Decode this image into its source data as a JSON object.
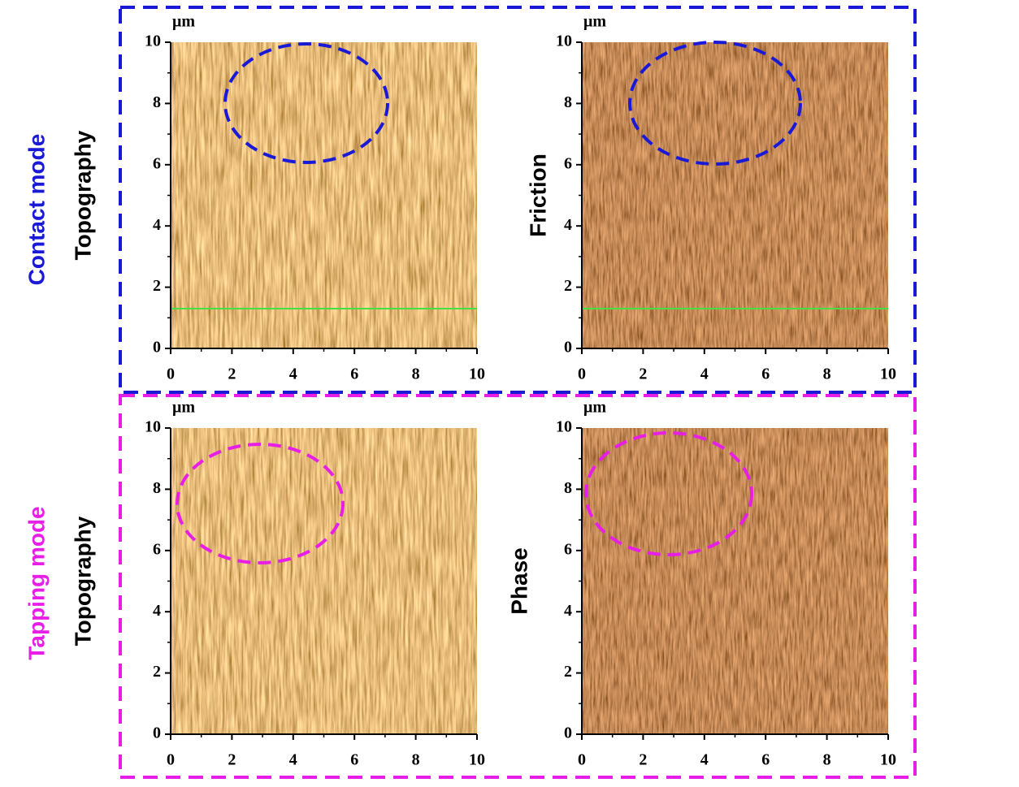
{
  "groups": [
    {
      "label": "Contact mode",
      "color": "#1a1ad6"
    },
    {
      "label": "Tapping mode",
      "color": "#e61ee6"
    }
  ],
  "panels": [
    {
      "label": "Topography",
      "unit": "μm",
      "xlim": [
        0,
        10
      ],
      "ylim": [
        0,
        10
      ],
      "xticks": [
        0,
        2,
        4,
        6,
        8,
        10
      ],
      "yticks": [
        0,
        2,
        4,
        6,
        8,
        10
      ]
    },
    {
      "label": "Friction",
      "unit": "μm",
      "xlim": [
        0,
        10
      ],
      "ylim": [
        0,
        10
      ],
      "xticks": [
        0,
        2,
        4,
        6,
        8,
        10
      ],
      "yticks": [
        0,
        2,
        4,
        6,
        8,
        10
      ]
    },
    {
      "label": "Topography",
      "unit": "μm",
      "xlim": [
        0,
        10
      ],
      "ylim": [
        0,
        10
      ],
      "xticks": [
        0,
        2,
        4,
        6,
        8,
        10
      ],
      "yticks": [
        0,
        2,
        4,
        6,
        8,
        10
      ]
    },
    {
      "label": "Phase",
      "unit": "μm",
      "xlim": [
        0,
        10
      ],
      "ylim": [
        0,
        10
      ],
      "xticks": [
        0,
        2,
        4,
        6,
        8,
        10
      ],
      "yticks": [
        0,
        2,
        4,
        6,
        8,
        10
      ]
    }
  ]
}
